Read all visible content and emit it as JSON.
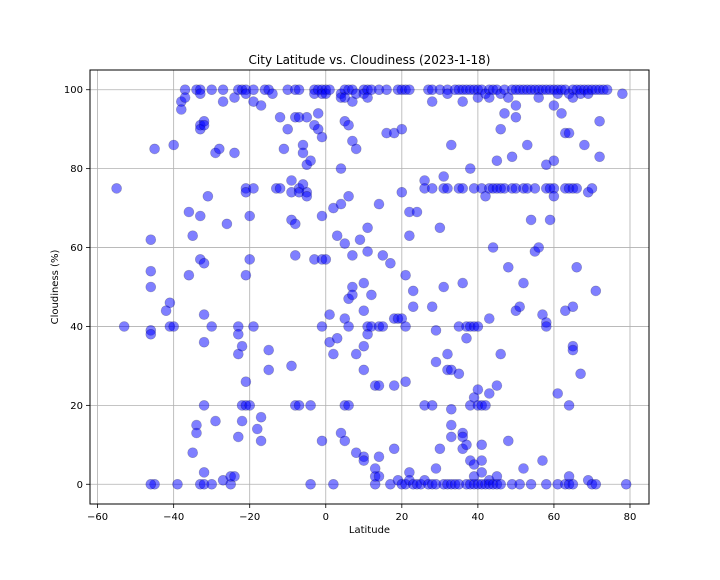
{
  "chart_data": {
    "type": "scatter",
    "title": "City Latitude vs. Cloudiness (2023-1-18)",
    "xlabel": "Latitude",
    "ylabel": "Cloudiness (%)",
    "xlim": [
      -62,
      85
    ],
    "ylim": [
      -5,
      105
    ],
    "xticks": [
      -60,
      -40,
      -20,
      0,
      20,
      40,
      60,
      80
    ],
    "yticks": [
      0,
      20,
      40,
      60,
      80,
      100
    ],
    "grid": true,
    "marker_color": "#0000ff",
    "marker_edge": "#000000",
    "points": [
      [
        -55,
        75
      ],
      [
        -53,
        40
      ],
      [
        -46,
        62
      ],
      [
        -46,
        54
      ],
      [
        -46,
        50
      ],
      [
        -46,
        39
      ],
      [
        -46,
        38
      ],
      [
        -45,
        85
      ],
      [
        -45,
        0
      ],
      [
        -46,
        0
      ],
      [
        -41,
        46
      ],
      [
        -42,
        44
      ],
      [
        -41,
        40
      ],
      [
        -40,
        86
      ],
      [
        -40,
        40
      ],
      [
        -39,
        0
      ],
      [
        -38,
        97
      ],
      [
        -38,
        95
      ],
      [
        -37,
        100
      ],
      [
        -37,
        98
      ],
      [
        -36,
        69
      ],
      [
        -36,
        53
      ],
      [
        -35,
        63
      ],
      [
        -34,
        100
      ],
      [
        -33,
        100
      ],
      [
        -33,
        99
      ],
      [
        -34,
        15
      ],
      [
        -34,
        13
      ],
      [
        -35,
        8
      ],
      [
        -33,
        91
      ],
      [
        -33,
        90
      ],
      [
        -32,
        92
      ],
      [
        -32,
        91
      ],
      [
        -33,
        68
      ],
      [
        -33,
        57
      ],
      [
        -32,
        56
      ],
      [
        -32,
        43
      ],
      [
        -32,
        36
      ],
      [
        -32,
        20
      ],
      [
        -32,
        3
      ],
      [
        -33,
        0
      ],
      [
        -32,
        0
      ],
      [
        -31,
        73
      ],
      [
        -30,
        100
      ],
      [
        -30,
        40
      ],
      [
        -29,
        84
      ],
      [
        -29,
        16
      ],
      [
        -30,
        0
      ],
      [
        -28,
        85
      ],
      [
        -27,
        100
      ],
      [
        -27,
        97
      ],
      [
        -27,
        1
      ],
      [
        -26,
        66
      ],
      [
        -25,
        0
      ],
      [
        -24,
        98
      ],
      [
        -24,
        84
      ],
      [
        -23,
        100
      ],
      [
        -23,
        40
      ],
      [
        -23,
        38
      ],
      [
        -23,
        33
      ],
      [
        -22,
        35
      ],
      [
        -22,
        16
      ],
      [
        -23,
        12
      ],
      [
        -25,
        2
      ],
      [
        -24,
        2
      ],
      [
        -22,
        100
      ],
      [
        -21,
        100
      ],
      [
        -21,
        99
      ],
      [
        -21,
        75
      ],
      [
        -21,
        74
      ],
      [
        -20,
        68
      ],
      [
        -20,
        57
      ],
      [
        -21,
        53
      ],
      [
        -21,
        26
      ],
      [
        -22,
        20
      ],
      [
        -21,
        20
      ],
      [
        -20,
        20
      ],
      [
        -19,
        100
      ],
      [
        -19,
        97
      ],
      [
        -19,
        75
      ],
      [
        -19,
        40
      ],
      [
        -18,
        14
      ],
      [
        -17,
        96
      ],
      [
        -17,
        17
      ],
      [
        -17,
        11
      ],
      [
        -16,
        100
      ],
      [
        -15,
        100
      ],
      [
        -15,
        29
      ],
      [
        -15,
        34
      ],
      [
        -14,
        99
      ],
      [
        -13,
        75
      ],
      [
        -12,
        75
      ],
      [
        -12,
        93
      ],
      [
        -11,
        85
      ],
      [
        -10,
        100
      ],
      [
        -10,
        90
      ],
      [
        -9,
        77
      ],
      [
        -9,
        74
      ],
      [
        -9,
        67
      ],
      [
        -9,
        30
      ],
      [
        -8,
        100
      ],
      [
        -8,
        93
      ],
      [
        -8,
        66
      ],
      [
        -8,
        58
      ],
      [
        -8,
        20
      ],
      [
        -7,
        100
      ],
      [
        -7,
        93
      ],
      [
        -7,
        75
      ],
      [
        -7,
        74
      ],
      [
        -7,
        20
      ],
      [
        -6,
        86
      ],
      [
        -6,
        84
      ],
      [
        -6,
        76
      ],
      [
        -5,
        93
      ],
      [
        -5,
        81
      ],
      [
        -5,
        74
      ],
      [
        -5,
        73
      ],
      [
        -4,
        82
      ],
      [
        -4,
        0
      ],
      [
        -4,
        20
      ],
      [
        -3,
        100
      ],
      [
        -3,
        99
      ],
      [
        -3,
        91
      ],
      [
        -3,
        57
      ],
      [
        -2,
        100
      ],
      [
        -2,
        94
      ],
      [
        -2,
        90
      ],
      [
        -1,
        100
      ],
      [
        -1,
        99
      ],
      [
        -1,
        57
      ],
      [
        -1,
        88
      ],
      [
        -1,
        68
      ],
      [
        -1,
        40
      ],
      [
        -1,
        11
      ],
      [
        0,
        100
      ],
      [
        0,
        99
      ],
      [
        0,
        57
      ],
      [
        1,
        100
      ],
      [
        1,
        43
      ],
      [
        1,
        36
      ],
      [
        2,
        70
      ],
      [
        2,
        33
      ],
      [
        2,
        0
      ],
      [
        3,
        63
      ],
      [
        3,
        37
      ],
      [
        4,
        99
      ],
      [
        4,
        98
      ],
      [
        4,
        13
      ],
      [
        4,
        80
      ],
      [
        4,
        71
      ],
      [
        5,
        100
      ],
      [
        5,
        98
      ],
      [
        5,
        92
      ],
      [
        5,
        61
      ],
      [
        5,
        42
      ],
      [
        5,
        20
      ],
      [
        5,
        11
      ],
      [
        6,
        100
      ],
      [
        6,
        20
      ],
      [
        6,
        91
      ],
      [
        6,
        73
      ],
      [
        6,
        47
      ],
      [
        6,
        40
      ],
      [
        7,
        100
      ],
      [
        7,
        97
      ],
      [
        7,
        87
      ],
      [
        7,
        58
      ],
      [
        7,
        50
      ],
      [
        7,
        48
      ],
      [
        8,
        99
      ],
      [
        8,
        85
      ],
      [
        8,
        33
      ],
      [
        8,
        8
      ],
      [
        9,
        62
      ],
      [
        10,
        100
      ],
      [
        10,
        99
      ],
      [
        10,
        51
      ],
      [
        10,
        44
      ],
      [
        10,
        35
      ],
      [
        10,
        29
      ],
      [
        10,
        7
      ],
      [
        10,
        6
      ],
      [
        11,
        100
      ],
      [
        11,
        98
      ],
      [
        11,
        65
      ],
      [
        11,
        59
      ],
      [
        11,
        40
      ],
      [
        11,
        38
      ],
      [
        12,
        100
      ],
      [
        12,
        48
      ],
      [
        12,
        40
      ],
      [
        13,
        0
      ],
      [
        13,
        2
      ],
      [
        13,
        4
      ],
      [
        13,
        25
      ],
      [
        14,
        100
      ],
      [
        14,
        71
      ],
      [
        14,
        40
      ],
      [
        14,
        25
      ],
      [
        14,
        7
      ],
      [
        14,
        2
      ],
      [
        15,
        58
      ],
      [
        15,
        40
      ],
      [
        16,
        100
      ],
      [
        16,
        89
      ],
      [
        17,
        56
      ],
      [
        17,
        0
      ],
      [
        18,
        89
      ],
      [
        18,
        42
      ],
      [
        18,
        25
      ],
      [
        18,
        9
      ],
      [
        19,
        100
      ],
      [
        19,
        42
      ],
      [
        19,
        1
      ],
      [
        20,
        100
      ],
      [
        20,
        90
      ],
      [
        20,
        74
      ],
      [
        20,
        42
      ],
      [
        20,
        0
      ],
      [
        21,
        100
      ],
      [
        21,
        53
      ],
      [
        21,
        40
      ],
      [
        21,
        26
      ],
      [
        21,
        0
      ],
      [
        22,
        100
      ],
      [
        22,
        69
      ],
      [
        22,
        63
      ],
      [
        22,
        3
      ],
      [
        22,
        1
      ],
      [
        23,
        49
      ],
      [
        23,
        45
      ],
      [
        23,
        0
      ],
      [
        24,
        69
      ],
      [
        24,
        0
      ],
      [
        25,
        0
      ],
      [
        26,
        77
      ],
      [
        26,
        75
      ],
      [
        26,
        20
      ],
      [
        26,
        1
      ],
      [
        27,
        0
      ],
      [
        27,
        100
      ],
      [
        28,
        100
      ],
      [
        28,
        97
      ],
      [
        28,
        75
      ],
      [
        28,
        45
      ],
      [
        28,
        20
      ],
      [
        28,
        0
      ],
      [
        29,
        39
      ],
      [
        29,
        31
      ],
      [
        29,
        4
      ],
      [
        29,
        0
      ],
      [
        30,
        100
      ],
      [
        30,
        65
      ],
      [
        30,
        9
      ],
      [
        31,
        78
      ],
      [
        31,
        75
      ],
      [
        31,
        50
      ],
      [
        31,
        0
      ],
      [
        32,
        100
      ],
      [
        32,
        99
      ],
      [
        32,
        75
      ],
      [
        32,
        33
      ],
      [
        32,
        29
      ],
      [
        32,
        0
      ],
      [
        33,
        86
      ],
      [
        33,
        29
      ],
      [
        33,
        19
      ],
      [
        33,
        15
      ],
      [
        33,
        12
      ],
      [
        33,
        0
      ],
      [
        34,
        100
      ],
      [
        34,
        0
      ],
      [
        35,
        100
      ],
      [
        35,
        75
      ],
      [
        35,
        40
      ],
      [
        35,
        28
      ],
      [
        35,
        0
      ],
      [
        36,
        100
      ],
      [
        36,
        97
      ],
      [
        36,
        75
      ],
      [
        36,
        51
      ],
      [
        36,
        13
      ],
      [
        36,
        12
      ],
      [
        36,
        9
      ],
      [
        37,
        100
      ],
      [
        37,
        40
      ],
      [
        37,
        37
      ],
      [
        37,
        10
      ],
      [
        37,
        0
      ],
      [
        38,
        100
      ],
      [
        38,
        80
      ],
      [
        38,
        40
      ],
      [
        38,
        20
      ],
      [
        38,
        6
      ],
      [
        38,
        0
      ],
      [
        39,
        100
      ],
      [
        39,
        75
      ],
      [
        39,
        40
      ],
      [
        39,
        22
      ],
      [
        39,
        5
      ],
      [
        39,
        2
      ],
      [
        39,
        0
      ],
      [
        40,
        100
      ],
      [
        40,
        98
      ],
      [
        40,
        40
      ],
      [
        40,
        24
      ],
      [
        40,
        20
      ],
      [
        40,
        0
      ],
      [
        41,
        100
      ],
      [
        41,
        75
      ],
      [
        41,
        20
      ],
      [
        41,
        10
      ],
      [
        41,
        6
      ],
      [
        41,
        3
      ],
      [
        41,
        0
      ],
      [
        42,
        99
      ],
      [
        42,
        73
      ],
      [
        42,
        20
      ],
      [
        42,
        0
      ],
      [
        43,
        100
      ],
      [
        43,
        98
      ],
      [
        43,
        75
      ],
      [
        43,
        42
      ],
      [
        43,
        23
      ],
      [
        43,
        1
      ],
      [
        43,
        0
      ],
      [
        44,
        100
      ],
      [
        44,
        75
      ],
      [
        44,
        60
      ],
      [
        44,
        0
      ],
      [
        45,
        100
      ],
      [
        45,
        82
      ],
      [
        45,
        75
      ],
      [
        45,
        25
      ],
      [
        45,
        2
      ],
      [
        45,
        0
      ],
      [
        46,
        99
      ],
      [
        46,
        90
      ],
      [
        46,
        75
      ],
      [
        46,
        33
      ],
      [
        46,
        0
      ],
      [
        47,
        100
      ],
      [
        47,
        94
      ],
      [
        47,
        75
      ],
      [
        48,
        98
      ],
      [
        48,
        55
      ],
      [
        48,
        11
      ],
      [
        49,
        100
      ],
      [
        49,
        83
      ],
      [
        49,
        75
      ],
      [
        49,
        0
      ],
      [
        50,
        100
      ],
      [
        50,
        96
      ],
      [
        50,
        93
      ],
      [
        50,
        75
      ],
      [
        50,
        44
      ],
      [
        51,
        100
      ],
      [
        51,
        45
      ],
      [
        51,
        0
      ],
      [
        52,
        100
      ],
      [
        52,
        75
      ],
      [
        52,
        51
      ],
      [
        52,
        4
      ],
      [
        53,
        100
      ],
      [
        53,
        86
      ],
      [
        53,
        75
      ],
      [
        54,
        100
      ],
      [
        54,
        67
      ],
      [
        54,
        0
      ],
      [
        55,
        100
      ],
      [
        55,
        75
      ],
      [
        55,
        59
      ],
      [
        56,
        100
      ],
      [
        56,
        60
      ],
      [
        56,
        98
      ],
      [
        57,
        100
      ],
      [
        57,
        43
      ],
      [
        57,
        6
      ],
      [
        58,
        100
      ],
      [
        58,
        81
      ],
      [
        58,
        75
      ],
      [
        58,
        41
      ],
      [
        58,
        40
      ],
      [
        58,
        0
      ],
      [
        59,
        100
      ],
      [
        59,
        75
      ],
      [
        59,
        67
      ],
      [
        60,
        100
      ],
      [
        60,
        96
      ],
      [
        60,
        82
      ],
      [
        60,
        75
      ],
      [
        60,
        73
      ],
      [
        61,
        100
      ],
      [
        61,
        99
      ],
      [
        61,
        23
      ],
      [
        61,
        0
      ],
      [
        62,
        100
      ],
      [
        62,
        94
      ],
      [
        63,
        100
      ],
      [
        63,
        89
      ],
      [
        63,
        75
      ],
      [
        63,
        44
      ],
      [
        63,
        0
      ],
      [
        64,
        99
      ],
      [
        64,
        89
      ],
      [
        64,
        75
      ],
      [
        64,
        20
      ],
      [
        64,
        2
      ],
      [
        64,
        0
      ],
      [
        65,
        100
      ],
      [
        65,
        98
      ],
      [
        65,
        75
      ],
      [
        65,
        45
      ],
      [
        65,
        35
      ],
      [
        65,
        34
      ],
      [
        65,
        0
      ],
      [
        66,
        100
      ],
      [
        66,
        75
      ],
      [
        66,
        55
      ],
      [
        67,
        100
      ],
      [
        67,
        99
      ],
      [
        67,
        28
      ],
      [
        68,
        100
      ],
      [
        68,
        86
      ],
      [
        69,
        100
      ],
      [
        69,
        99
      ],
      [
        69,
        74
      ],
      [
        69,
        1
      ],
      [
        70,
        100
      ],
      [
        70,
        75
      ],
      [
        70,
        0
      ],
      [
        71,
        100
      ],
      [
        71,
        49
      ],
      [
        71,
        0
      ],
      [
        72,
        100
      ],
      [
        72,
        92
      ],
      [
        72,
        83
      ],
      [
        73,
        100
      ],
      [
        74,
        100
      ],
      [
        78,
        99
      ],
      [
        79,
        0
      ]
    ]
  }
}
